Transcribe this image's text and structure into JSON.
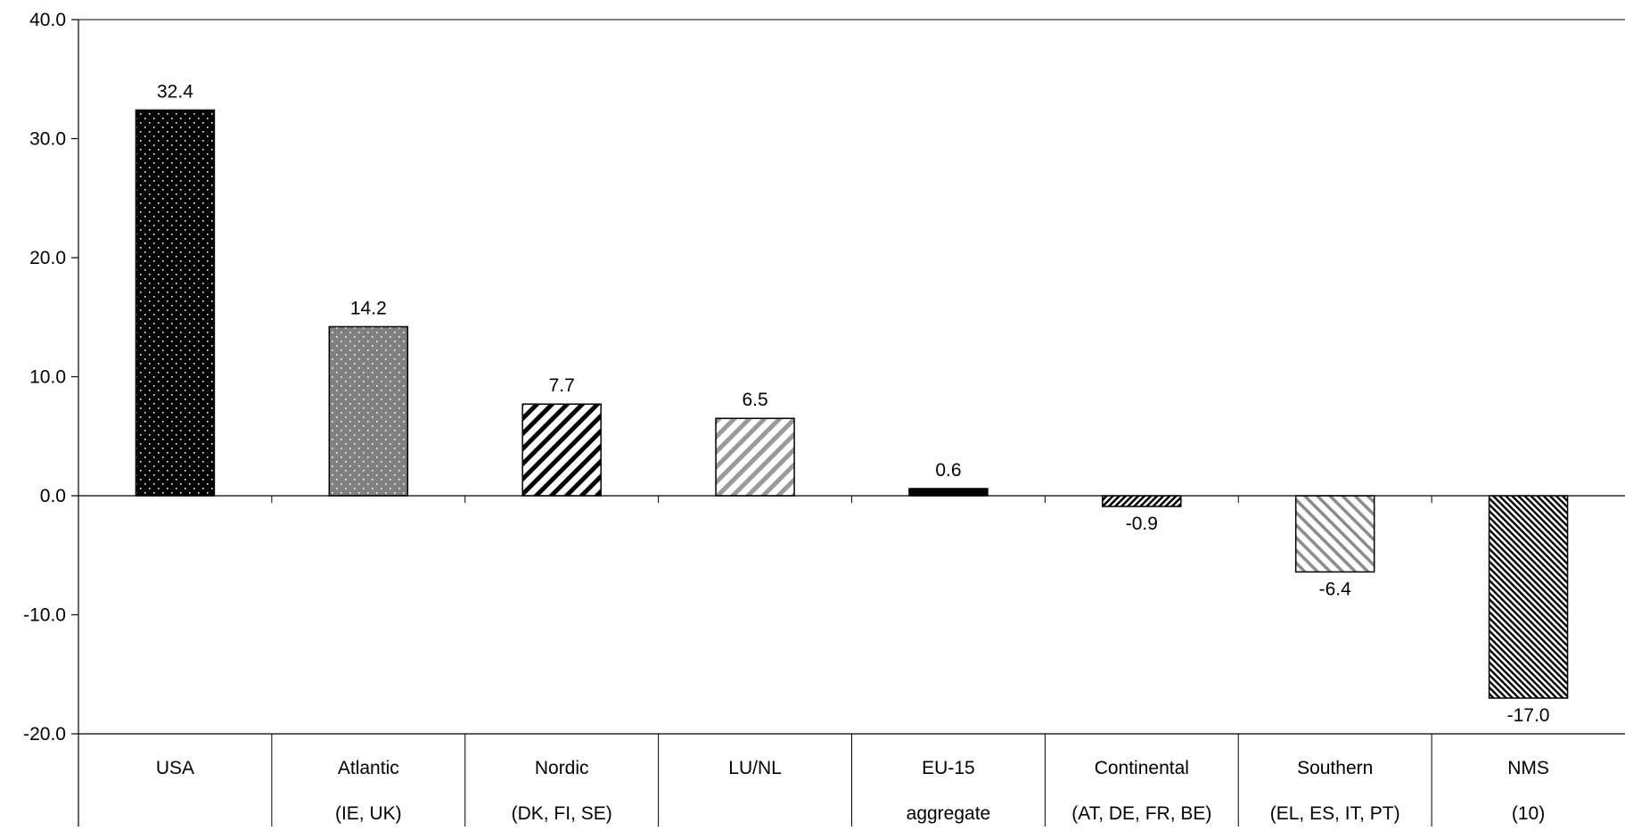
{
  "chart_data": {
    "type": "bar",
    "title": "",
    "xlabel": "",
    "ylabel": "",
    "ylim": [
      -20,
      40
    ],
    "yticks": [
      "40.0",
      "30.0",
      "20.0",
      "10.0",
      "0.0",
      "-10.0",
      "-20.0"
    ],
    "ytick_values": [
      40,
      30,
      20,
      10,
      0,
      -10,
      -20
    ],
    "grid": false,
    "legend": "none",
    "categories": [
      {
        "line1": "USA",
        "line2": ""
      },
      {
        "line1": "Atlantic",
        "line2": "(IE, UK)"
      },
      {
        "line1": "Nordic",
        "line2": "(DK, FI, SE)"
      },
      {
        "line1": "LU/NL",
        "line2": ""
      },
      {
        "line1": "EU-15",
        "line2": "aggregate"
      },
      {
        "line1": "Continental",
        "line2": "(AT, DE, FR, BE)"
      },
      {
        "line1": "Southern",
        "line2": "(EL, ES, IT, PT)"
      },
      {
        "line1": "NMS",
        "line2": "(10)"
      }
    ],
    "values": [
      32.4,
      14.2,
      7.7,
      6.5,
      0.6,
      -0.9,
      -6.4,
      -17.0
    ],
    "value_labels": [
      "32.4",
      "14.2",
      "7.7",
      "6.5",
      "0.6",
      "-0.9",
      "-6.4",
      "-17.0"
    ],
    "bar_patterns": [
      "dots-on-black",
      "dots-on-gray",
      "wide-diagonal-black",
      "wide-diagonal-gray",
      "solid-black",
      "dense-diagonal",
      "back-diagonal-gray",
      "dense-back-diagonal"
    ]
  }
}
